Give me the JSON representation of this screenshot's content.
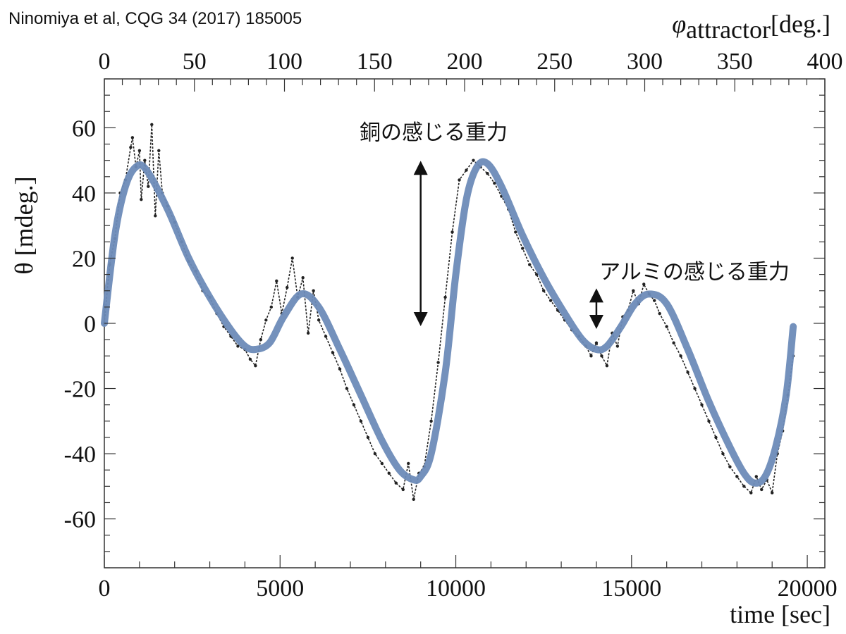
{
  "citation": "Ninomiya et al, CQG 34 (2017) 185005",
  "chart_data": {
    "type": "line",
    "xlabel": "time [sec]",
    "ylabel": "θ [mdeg.]",
    "top_axis_label": "φattractor [deg.]",
    "top_axis_label_parts": {
      "symbol": "φ",
      "subscript": "attractor",
      "unit": "[deg.]"
    },
    "xlim": [
      0,
      20500
    ],
    "ylim": [
      -75,
      75
    ],
    "top_xlim": [
      0,
      400
    ],
    "x_ticks": [
      0,
      5000,
      10000,
      15000,
      20000
    ],
    "x_tick_labels": [
      "0",
      "5000",
      "10000",
      "15000",
      "20000"
    ],
    "y_ticks": [
      -60,
      -40,
      -20,
      0,
      20,
      40,
      60
    ],
    "y_tick_labels": [
      "-60",
      "-40",
      "-20",
      "0",
      "20",
      "40",
      "60"
    ],
    "top_ticks": [
      0,
      50,
      100,
      150,
      200,
      250,
      300,
      350,
      400
    ],
    "top_tick_labels": [
      "0",
      "50",
      "100",
      "150",
      "200",
      "250",
      "300",
      "350",
      "400"
    ],
    "grid": false,
    "series": [
      {
        "kind": "fit",
        "color": "#6d8bb8",
        "x": [
          0,
          300,
          600,
          900,
          1200,
          1800,
          2400,
          3000,
          3600,
          4000,
          4300,
          4700,
          5100,
          5600,
          6100,
          6700,
          7300,
          7900,
          8400,
          8800,
          9000,
          9300,
          9700,
          10000,
          10300,
          10600,
          10900,
          11300,
          11900,
          12500,
          13100,
          13600,
          14000,
          14300,
          14700,
          15100,
          15500,
          16000,
          16600,
          17200,
          17800,
          18200,
          18500,
          18800,
          19100,
          19400,
          19600
        ],
        "y": [
          0,
          27,
          42,
          48,
          47,
          35,
          20,
          8,
          -2,
          -7,
          -8,
          -6,
          2,
          9,
          5,
          -8,
          -22,
          -36,
          -45,
          -48,
          -47,
          -40,
          -15,
          15,
          38,
          48,
          49,
          42,
          27,
          14,
          3,
          -5,
          -8,
          -7,
          -1,
          6,
          9,
          6,
          -8,
          -24,
          -38,
          -46,
          -49,
          -47,
          -38,
          -22,
          -1
        ]
      },
      {
        "kind": "data",
        "color": "#222222",
        "x": [
          0,
          150,
          300,
          450,
          600,
          750,
          800,
          900,
          1000,
          1050,
          1150,
          1250,
          1350,
          1450,
          1550,
          1650,
          1800,
          2000,
          2200,
          2400,
          2600,
          2800,
          3000,
          3200,
          3400,
          3600,
          3800,
          4000,
          4150,
          4300,
          4450,
          4600,
          4750,
          4900,
          5050,
          5200,
          5350,
          5500,
          5650,
          5800,
          5950,
          6100,
          6300,
          6500,
          6700,
          6900,
          7100,
          7300,
          7500,
          7700,
          7900,
          8100,
          8300,
          8500,
          8650,
          8800,
          8950,
          9100,
          9300,
          9500,
          9700,
          9900,
          10100,
          10300,
          10500,
          10700,
          10900,
          11100,
          11300,
          11500,
          11700,
          11900,
          12100,
          12300,
          12500,
          12700,
          12900,
          13100,
          13300,
          13500,
          13700,
          13850,
          14000,
          14150,
          14300,
          14450,
          14600,
          14750,
          14900,
          15050,
          15200,
          15350,
          15500,
          15650,
          15800,
          16000,
          16200,
          16400,
          16600,
          16800,
          17000,
          17200,
          17400,
          17600,
          17800,
          18000,
          18200,
          18400,
          18550,
          18700,
          18850,
          19000,
          19150,
          19300,
          19450,
          19600
        ],
        "y": [
          0,
          18,
          26,
          40,
          44,
          54,
          57,
          48,
          53,
          38,
          50,
          42,
          61,
          33,
          53,
          40,
          36,
          31,
          25,
          19,
          16,
          10,
          8,
          3,
          -1,
          -4,
          -7,
          -8,
          -11,
          -13,
          -5,
          1,
          5,
          13,
          3,
          11,
          20,
          8,
          14,
          -3,
          10,
          1,
          -4,
          -9,
          -14,
          -20,
          -25,
          -30,
          -35,
          -40,
          -43,
          -46,
          -49,
          -51,
          -43,
          -54,
          -46,
          -44,
          -30,
          -12,
          8,
          28,
          44,
          47,
          50,
          48,
          46,
          43,
          39,
          35,
          28,
          23,
          18,
          15,
          10,
          7,
          4,
          1,
          -2,
          -4,
          -7,
          -10,
          -6,
          -10,
          -13,
          -3,
          -7,
          2,
          4,
          10,
          6,
          12,
          9,
          7,
          3,
          -1,
          -6,
          -10,
          -15,
          -20,
          -25,
          -30,
          -35,
          -40,
          -44,
          -47,
          -50,
          -52,
          -47,
          -51,
          -48,
          -52,
          -40,
          -33,
          -22,
          -10
        ]
      }
    ],
    "annotations": [
      {
        "text": "銅の感じる重力",
        "arrow_x": 9000,
        "arrow_y_from": 49,
        "arrow_y_to": 0
      },
      {
        "text": "アルミの感じる重力",
        "arrow_x": 14000,
        "arrow_y_from": 9,
        "arrow_y_to": 0
      }
    ]
  }
}
